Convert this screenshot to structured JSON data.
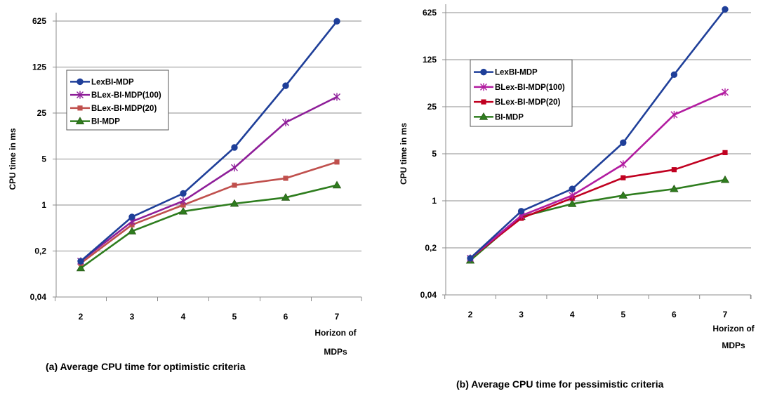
{
  "chart_data": [
    {
      "type": "line",
      "caption": "(a)  Average CPU time for optimistic criteria",
      "ylabel": "CPU time in ms",
      "xlabel_lines": [
        "Horizon of",
        "MDPs"
      ],
      "yscale": "log5",
      "yticks": [
        0.04,
        0.2,
        1,
        5,
        25,
        125,
        625
      ],
      "ytick_labels": [
        "0,04",
        "0,2",
        "1",
        "5",
        "25",
        "125",
        "625"
      ],
      "x": [
        2,
        3,
        4,
        5,
        6,
        7
      ],
      "grid": true,
      "legend_position": "upper-left",
      "series": [
        {
          "name": "LexBI-MDP",
          "color": "#1f3f99",
          "marker": "circle",
          "values": [
            0.14,
            0.66,
            1.5,
            7.5,
            65,
            620
          ]
        },
        {
          "name": "BLex-BI-MDP(100)",
          "color": "#8e1e99",
          "marker": "star",
          "values": [
            0.14,
            0.56,
            1.15,
            3.7,
            18,
            44
          ]
        },
        {
          "name": "BLex-BI-MDP(20)",
          "color": "#c0504d",
          "marker": "square",
          "values": [
            0.13,
            0.5,
            1.0,
            2.0,
            2.55,
            4.5
          ]
        },
        {
          "name": "BI-MDP",
          "color": "#2e7d1e",
          "marker": "triangle",
          "values": [
            0.11,
            0.4,
            0.8,
            1.05,
            1.3,
            2.0
          ]
        }
      ]
    },
    {
      "type": "line",
      "caption": "(b)  Average CPU time for pessimistic criteria",
      "ylabel": "CPU time in ms",
      "xlabel_lines": [
        "Horizon of",
        "MDPs"
      ],
      "yscale": "log5",
      "yticks": [
        0.04,
        0.2,
        1,
        5,
        25,
        125,
        625
      ],
      "ytick_labels": [
        "0,04",
        "0,2",
        "1",
        "5",
        "25",
        "125",
        "625"
      ],
      "x": [
        2,
        3,
        4,
        5,
        6,
        7
      ],
      "grid": true,
      "legend_position": "upper-left",
      "series": [
        {
          "name": "LexBI-MDP",
          "color": "#1f3f99",
          "marker": "circle",
          "values": [
            0.14,
            0.7,
            1.5,
            7.3,
            75,
            700
          ]
        },
        {
          "name": "BLex-BI-MDP(100)",
          "color": "#b21ca0",
          "marker": "star",
          "values": [
            0.14,
            0.6,
            1.2,
            3.5,
            19,
            41
          ]
        },
        {
          "name": "BLex-BI-MDP(20)",
          "color": "#c00020",
          "marker": "square",
          "values": [
            0.14,
            0.55,
            1.1,
            2.2,
            2.9,
            5.2
          ]
        },
        {
          "name": "BI-MDP",
          "color": "#2e7d1e",
          "marker": "triangle",
          "values": [
            0.13,
            0.58,
            0.9,
            1.2,
            1.5,
            2.05
          ]
        }
      ]
    }
  ]
}
